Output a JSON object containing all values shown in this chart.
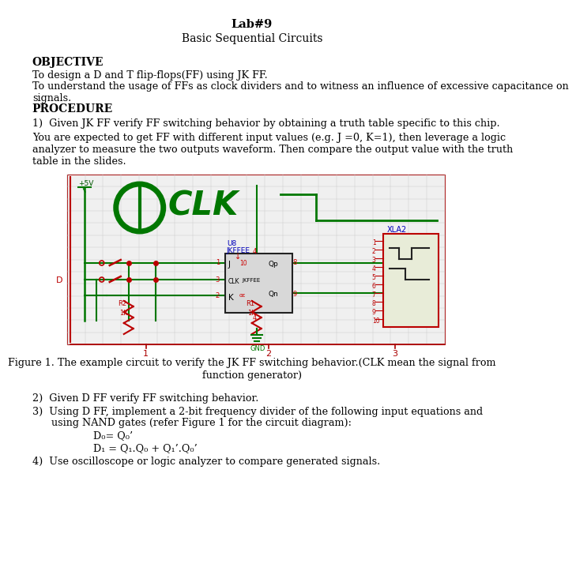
{
  "title": "Lab#9",
  "subtitle": "Basic Sequential Circuits",
  "objective_header": "OBJECTIVE",
  "objective_text1": "To design a D and T flip-flops(FF) using JK FF.",
  "objective_text2": "To understand the usage of FFs as clock dividers and to witness an influence of excessive capacitance on\nsignals.",
  "procedure_header": "PROCEDURE",
  "proc1": "1)  Given JK FF verify FF switching behavior by obtaining a truth table specific to this chip.",
  "proc1_detail": "You are expected to get FF with different input values (e.g. J =0, K=1), then leverage a logic\nanalyzer to measure the two outputs waveform. Then compare the output value with the truth\ntable in the slides.",
  "fig_caption_line1": "Figure 1. The example circuit to verify the JK FF switching behavior.(CLK mean the signal from",
  "fig_caption_line2": "function generator)",
  "proc2": "2)  Given D FF verify FF switching behavior.",
  "proc3a": "3)  Using D FF, implement a 2-bit frequency divider of the following input equations and",
  "proc3b": "      using NAND gates (refer Figure 1 for the circuit diagram):",
  "proc3_eq1": "D₀= Q₀’",
  "proc3_eq2": "D₁ = Q₁.Q₀ + Q₁’.Q₀’",
  "proc4": "4)  Use oscilloscope or logic analyzer to compare generated signals.",
  "bg_color": "#ffffff"
}
